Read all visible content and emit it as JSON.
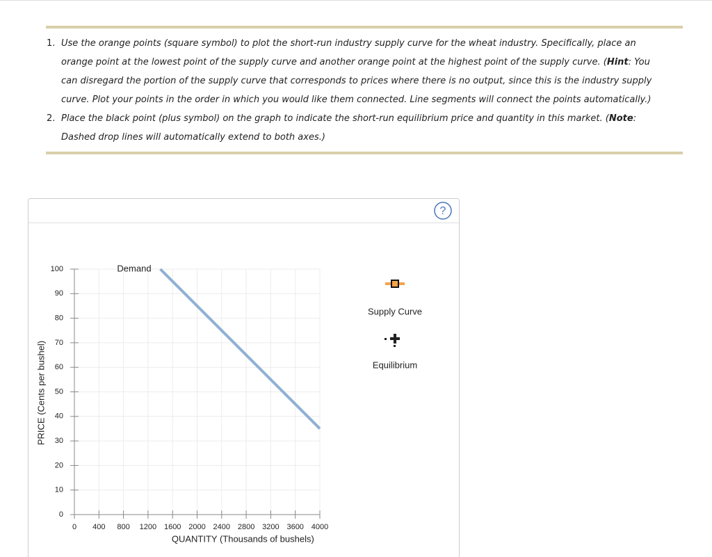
{
  "instructions": [
    {
      "number": "1.",
      "parts": [
        {
          "text": "Use the orange points (square symbol) to plot the short-run industry supply curve for the wheat industry. Specifically, place an orange point at the lowest point of the supply curve and another orange point at the highest point of the supply curve. (",
          "bold": false
        },
        {
          "text": "Hint",
          "bold": true
        },
        {
          "text": ": You can disregard the portion of the supply curve that corresponds to prices where there is no output, since this is the industry supply curve. Plot your points in the order in which you would like them connected. Line segments will connect the points automatically.)",
          "bold": false
        }
      ]
    },
    {
      "number": "2.",
      "parts": [
        {
          "text": "Place the black point (plus symbol) on the graph to indicate the short-run equilibrium price and quantity in this market. (",
          "bold": false
        },
        {
          "text": "Note",
          "bold": true
        },
        {
          "text": ": Dashed drop lines will automatically extend to both axes.)",
          "bold": false
        }
      ]
    }
  ],
  "help": "?",
  "chart_data": {
    "type": "line",
    "xlabel": "QUANTITY (Thousands of bushels)",
    "ylabel": "PRICE (Cents per bushel)",
    "xlim": [
      0,
      4000
    ],
    "ylim": [
      0,
      100
    ],
    "xticks": [
      0,
      400,
      800,
      1200,
      1600,
      2000,
      2400,
      2800,
      3200,
      3600,
      4000
    ],
    "yticks": [
      0,
      10,
      20,
      30,
      40,
      50,
      60,
      70,
      80,
      90,
      100
    ],
    "grid": true,
    "series": [
      {
        "name": "Demand",
        "color": "#8fb0d4",
        "x": [
          1400,
          4000
        ],
        "values": [
          100,
          35
        ]
      }
    ]
  },
  "tools": [
    {
      "label": "Supply Curve",
      "color": "#f3a44a"
    },
    {
      "label": "Equilibrium",
      "color": "#222222"
    }
  ]
}
